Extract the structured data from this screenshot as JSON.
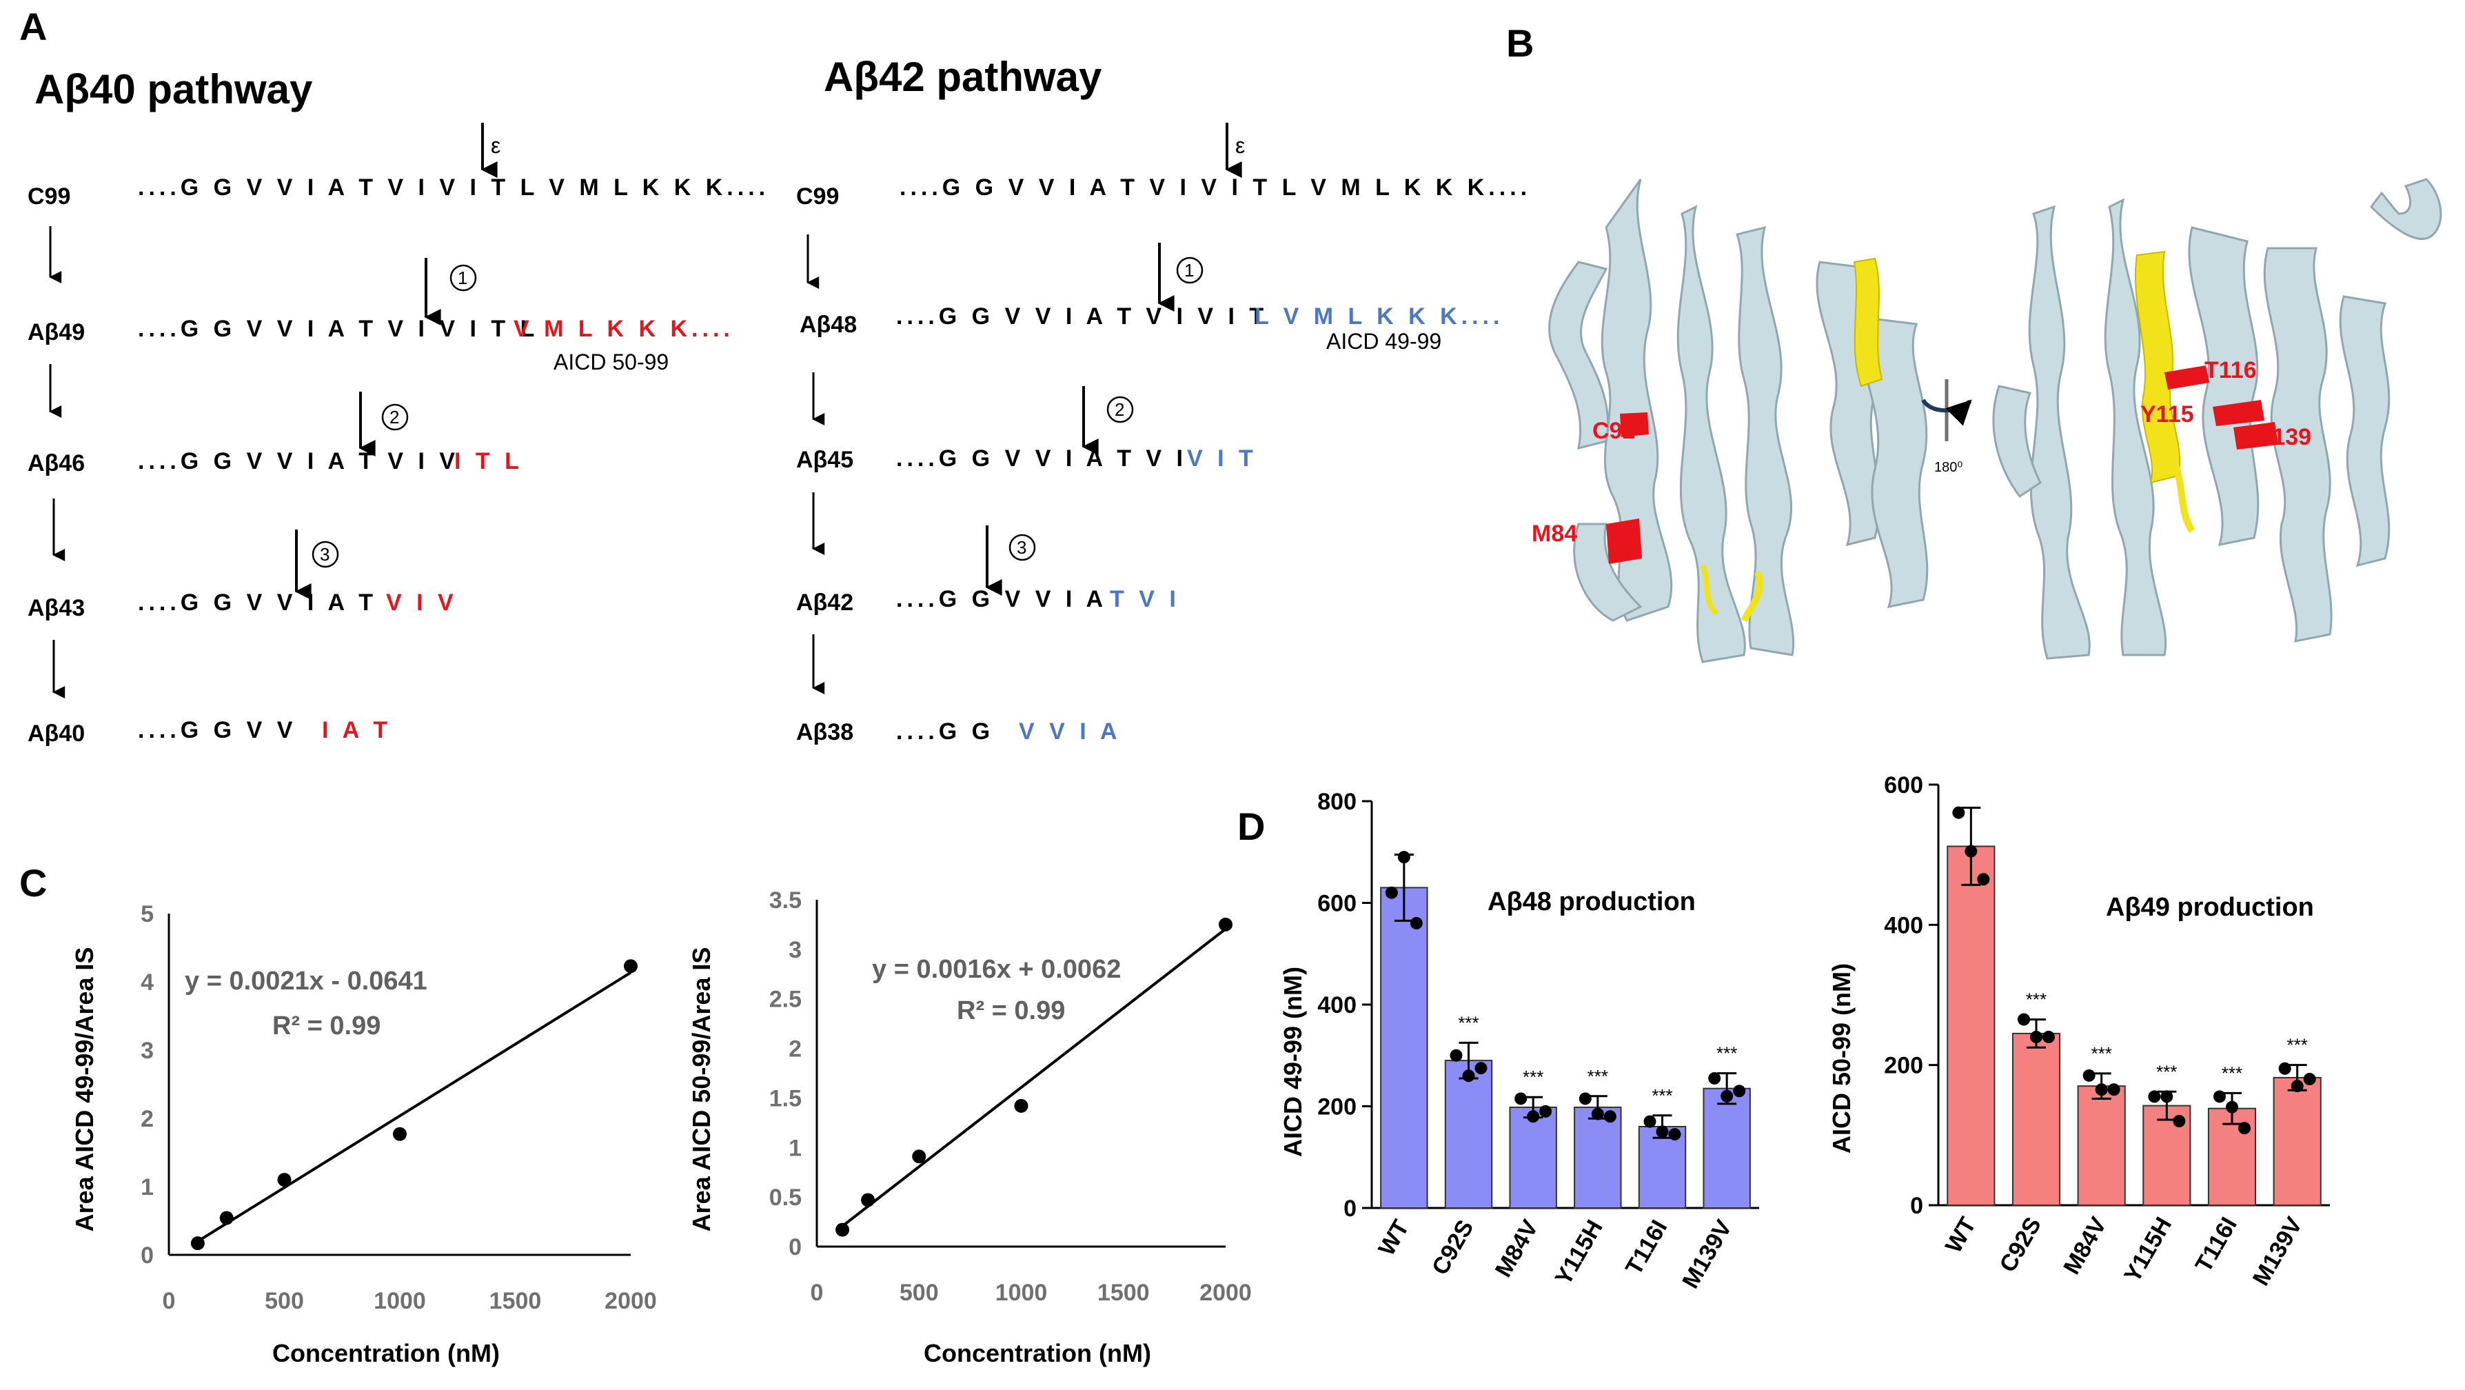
{
  "panel_labels": {
    "a": "A",
    "b": "B",
    "c": "C",
    "d": "D"
  },
  "panel_a": {
    "left": {
      "title": "Aβ40 pathway",
      "cleavage_mark": "ε",
      "rows": [
        {
          "name": "C99",
          "seq": "....G G V V I A T V I V I T L V M L K K K....",
          "cut": "",
          "note": ""
        },
        {
          "name": "Aβ49",
          "seq": "....G G V V I A T V I V I T L",
          "cut": "V M L K K K....",
          "note": "AICD 50-99",
          "step": "①"
        },
        {
          "name": "Aβ46",
          "seq": "....G G V V I A T V I V",
          "cut": "I T L",
          "note": "",
          "step": "②"
        },
        {
          "name": "Aβ43",
          "seq": "....G G V V I A T",
          "cut": "V I V",
          "note": "",
          "step": "③"
        },
        {
          "name": "Aβ40",
          "seq": "....G G V V",
          "cut": "I A T",
          "note": ""
        }
      ]
    },
    "right": {
      "title": "Aβ42 pathway",
      "cleavage_mark": "ε",
      "rows": [
        {
          "name": "C99",
          "seq": "....G G V V I A T V I V I T L V M L K K K....",
          "cut": "",
          "note": ""
        },
        {
          "name": "Aβ48",
          "seq": "....G G V V I A T V I V I T",
          "cut": "L V M L K K K....",
          "note": "AICD 49-99",
          "step": "①"
        },
        {
          "name": "Aβ45",
          "seq": "....G G V V I A T V I",
          "cut": "V I T",
          "note": "",
          "step": "②"
        },
        {
          "name": "Aβ42",
          "seq": "....G G V V I A",
          "cut": "T V I",
          "note": "",
          "step": "③"
        },
        {
          "name": "Aβ38",
          "seq": "....G G",
          "cut": "V V I A",
          "note": ""
        }
      ]
    },
    "colors": {
      "abeta40_cleaved": "#e8141c",
      "abeta42_cleaved": "#4a78c4"
    }
  },
  "panel_b": {
    "left_labels": [
      "C92",
      "M84"
    ],
    "right_labels": [
      "T116",
      "Y115",
      "M139"
    ],
    "rotation": "180⁰",
    "colors": {
      "protein": "#c9dce2",
      "highlight": "#f2e21a",
      "mutation": "#e8141c"
    }
  },
  "panel_d": {
    "left": {
      "title": "Aβ48 production",
      "bar_color": "#8c8cf6"
    },
    "right": {
      "title": "Aβ49 production",
      "bar_color": "#f48080"
    },
    "significance": "***"
  },
  "chart_data": [
    {
      "type": "scatter",
      "xlabel": "Concentration (nM)",
      "ylabel": "Area AICD 49-99/Area IS",
      "xlim": [
        0,
        2000
      ],
      "ylim": [
        0,
        5
      ],
      "xticks": [
        "0",
        "500",
        "1000",
        "1500",
        "2000"
      ],
      "yticks": [
        "0",
        "1",
        "2",
        "3",
        "4",
        "5"
      ],
      "points": [
        [
          125,
          0.17
        ],
        [
          250,
          0.54
        ],
        [
          500,
          1.1
        ],
        [
          1000,
          1.77
        ],
        [
          2000,
          4.23
        ]
      ],
      "fit": {
        "slope": 0.0021,
        "intercept": -0.0641
      },
      "equation": "y = 0.0021x - 0.0641",
      "r2": "R² = 0.99"
    },
    {
      "type": "scatter",
      "xlabel": "Concentration (nM)",
      "ylabel": "Area AICD  50-99/Area IS",
      "xlim": [
        0,
        2000
      ],
      "ylim": [
        0,
        3.5
      ],
      "xticks": [
        "0",
        "500",
        "1000",
        "1500",
        "2000"
      ],
      "yticks": [
        "0",
        "0.5",
        "1",
        "1.5",
        "2",
        "2.5",
        "3",
        "3.5"
      ],
      "points": [
        [
          125,
          0.17
        ],
        [
          250,
          0.47
        ],
        [
          500,
          0.91
        ],
        [
          1000,
          1.42
        ],
        [
          2000,
          3.25
        ]
      ],
      "fit": {
        "slope": 0.0016,
        "intercept": 0.0062
      },
      "equation": "y = 0.0016x + 0.0062",
      "r2": "R² = 0.99"
    },
    {
      "type": "bar",
      "ylabel": "AICD 49-99 (nM)",
      "categories": [
        "WT",
        "C92S",
        "M84V",
        "Y115H",
        "T116I",
        "M139V"
      ],
      "values": [
        630,
        290,
        198,
        198,
        160,
        235
      ],
      "errors": [
        65,
        35,
        20,
        22,
        22,
        30
      ],
      "points": [
        [
          620,
          690,
          560
        ],
        [
          300,
          260,
          275
        ],
        [
          215,
          180,
          190
        ],
        [
          215,
          185,
          180
        ],
        [
          170,
          150,
          145
        ],
        [
          255,
          220,
          230
        ]
      ],
      "ylim": [
        0,
        800
      ],
      "yticks": [
        "0",
        "200",
        "400",
        "600",
        "800"
      ],
      "significance": [
        "",
        "***",
        "***",
        "***",
        "***",
        "***"
      ]
    },
    {
      "type": "bar",
      "ylabel": "AICD 50-99 (nM)",
      "categories": [
        "WT",
        "C92S",
        "M84V",
        "Y115H",
        "T116I",
        "M139V"
      ],
      "values": [
        512,
        245,
        170,
        142,
        138,
        182
      ],
      "errors": [
        55,
        20,
        18,
        20,
        22,
        18
      ],
      "points": [
        [
          560,
          505,
          465
        ],
        [
          265,
          240,
          240
        ],
        [
          185,
          165,
          165
        ],
        [
          155,
          155,
          120
        ],
        [
          155,
          140,
          110
        ],
        [
          195,
          170,
          180
        ]
      ],
      "ylim": [
        0,
        600
      ],
      "yticks": [
        "0",
        "200",
        "400",
        "600"
      ],
      "significance": [
        "",
        "***",
        "***",
        "***",
        "***",
        "***"
      ]
    }
  ]
}
